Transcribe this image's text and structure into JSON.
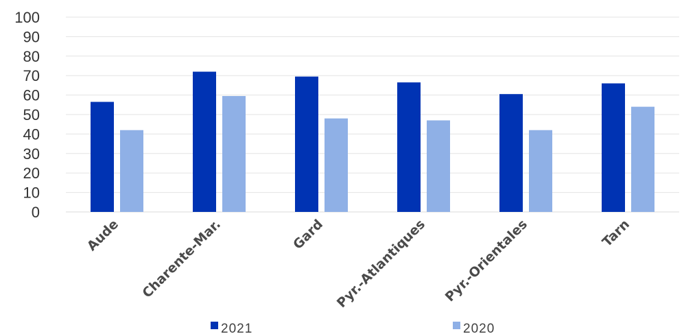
{
  "chart_data": {
    "type": "bar",
    "title": "",
    "xlabel": "",
    "ylabel": "",
    "categories": [
      "Aude",
      "Charente-Mar.",
      "Gard",
      "Pyr.-Atlantiques",
      "Pyr.-Orientales",
      "Tarn"
    ],
    "series": [
      {
        "name": "2021",
        "color": "#0033b3",
        "values": [
          56.5,
          72,
          69.5,
          66.5,
          60.5,
          66
        ]
      },
      {
        "name": "2020",
        "color": "#8fb0e6",
        "values": [
          42,
          59.5,
          48,
          47,
          42,
          54
        ]
      }
    ],
    "ylim": [
      0,
      100
    ],
    "yticks": [
      0,
      10,
      20,
      30,
      40,
      50,
      60,
      70,
      80,
      90,
      100
    ],
    "grid": true,
    "legend_position": "bottom"
  }
}
